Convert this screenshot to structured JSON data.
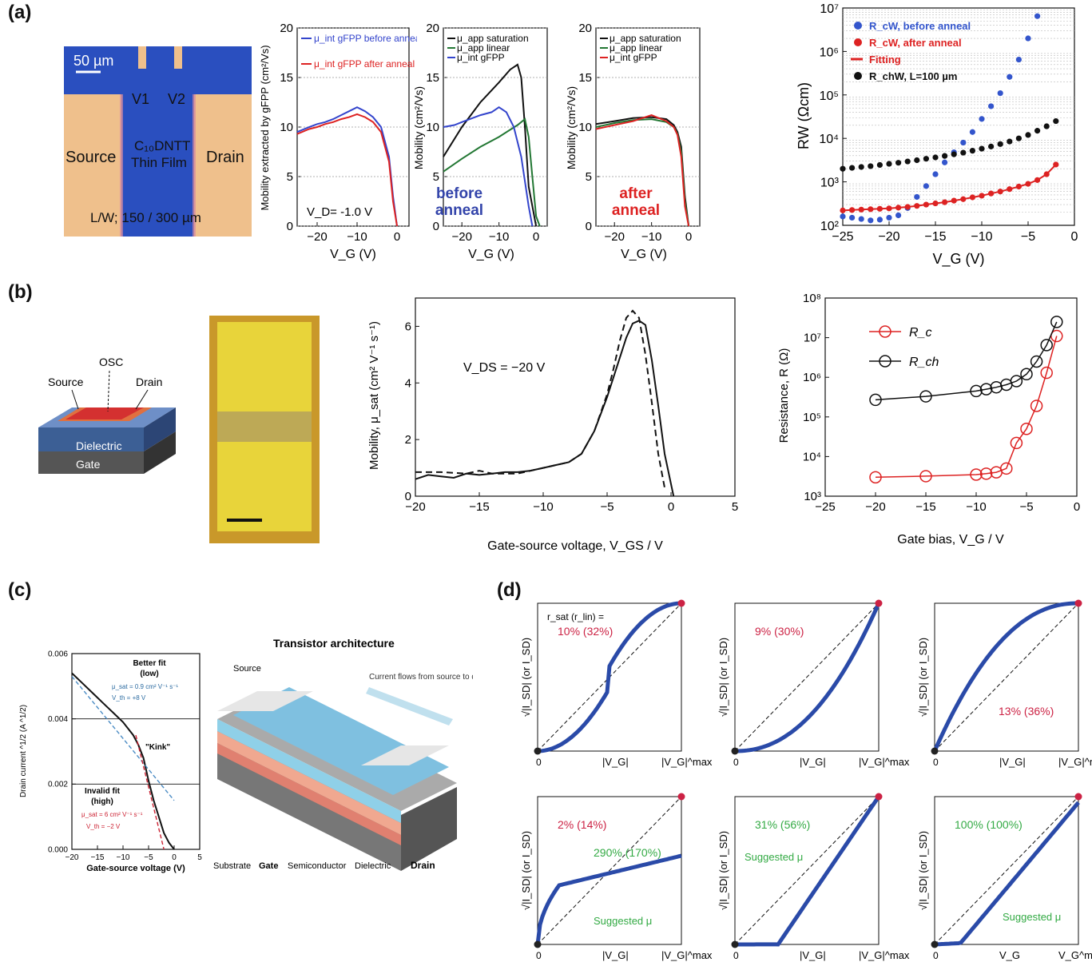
{
  "panel_labels": {
    "a": "(a)",
    "b": "(b)",
    "c": "(c)",
    "d": "(d)"
  },
  "a_micrograph": {
    "scale": "50 µm",
    "v1": "V1",
    "v2": "V2",
    "source": "Source",
    "drain": "Drain",
    "film_line1": "C₁₀DNTT",
    "film_line2": "Thin Film",
    "lw": "L/W; 150 / 300 µm",
    "colors": {
      "film": "#2a4fbf",
      "electrode": "#efc08c"
    }
  },
  "b_device": {
    "osc": "OSC",
    "source": "Source",
    "drain": "Drain",
    "dielectric": "Dielectric",
    "gate": "Gate"
  },
  "c_arch": {
    "title": "Transistor architecture",
    "source": "Source",
    "flow": "Current flows from source to drain",
    "substrate": "Substrate",
    "gate": "Gate",
    "semiconductor": "Semiconductor",
    "dielectric": "Dielectric",
    "drain": "Drain"
  },
  "chart_data": [
    {
      "id": "a1",
      "type": "line",
      "ylabel": "Mobility extracted by gFPP (cm²/Vs)",
      "xlabel": "V_G (V)",
      "xlim": [
        -25,
        3
      ],
      "ylim": [
        0,
        20
      ],
      "xticks": [
        -20,
        -10,
        0
      ],
      "yticks": [
        0,
        5,
        10,
        15,
        20
      ],
      "annotation": "V_D= -1.0 V",
      "series": [
        {
          "name": "μ_int gFPP before anneal",
          "color": "#3344cc",
          "x": [
            -25,
            -22,
            -20,
            -18,
            -16,
            -14,
            -12,
            -10,
            -8,
            -6,
            -4,
            -2,
            -1,
            0
          ],
          "y": [
            9.5,
            10,
            10.3,
            10.5,
            10.8,
            11.2,
            11.6,
            12,
            11.6,
            11,
            10,
            7,
            3,
            0
          ]
        },
        {
          "name": "μ_int gFPP after anneal",
          "color": "#dd2222",
          "x": [
            -25,
            -22,
            -20,
            -18,
            -16,
            -14,
            -12,
            -10,
            -8,
            -6,
            -4,
            -2,
            -1,
            0
          ],
          "y": [
            9.3,
            9.8,
            10,
            10.3,
            10.5,
            10.8,
            11,
            11.3,
            11,
            10.5,
            9.5,
            6.5,
            2.5,
            0
          ]
        }
      ]
    },
    {
      "id": "a2",
      "type": "line",
      "ylabel": "Mobility (cm²/Vs)",
      "xlabel": "V_G (V)",
      "xlim": [
        -25,
        3
      ],
      "ylim": [
        0,
        20
      ],
      "xticks": [
        -20,
        -10,
        0
      ],
      "yticks": [
        0,
        5,
        10,
        15,
        20
      ],
      "annotation": "before anneal",
      "series": [
        {
          "name": "μ_app saturation",
          "color": "#111111",
          "x": [
            -25,
            -20,
            -15,
            -10,
            -7,
            -5,
            -4,
            -3,
            -2,
            0
          ],
          "y": [
            7,
            10,
            12.5,
            14.5,
            15.8,
            16.3,
            15,
            10,
            4,
            0
          ]
        },
        {
          "name": "μ_app linear",
          "color": "#227733",
          "x": [
            -25,
            -20,
            -15,
            -10,
            -5,
            -3,
            -2,
            -1,
            0,
            1
          ],
          "y": [
            5.5,
            6.8,
            8,
            9,
            10.2,
            10.8,
            9,
            5,
            1,
            0
          ]
        },
        {
          "name": "μ_int gFPP",
          "color": "#3344cc",
          "x": [
            -25,
            -22,
            -20,
            -15,
            -12,
            -10,
            -8,
            -6,
            -4,
            -2,
            -1
          ],
          "y": [
            10,
            10.2,
            10.5,
            11.2,
            11.5,
            12,
            11.5,
            10,
            7,
            2,
            0
          ]
        }
      ]
    },
    {
      "id": "a3",
      "type": "line",
      "ylabel": "Mobility (cm²/Vs)",
      "xlabel": "V_G (V)",
      "xlim": [
        -25,
        3
      ],
      "ylim": [
        0,
        20
      ],
      "xticks": [
        -20,
        -10,
        0
      ],
      "yticks": [
        0,
        5,
        10,
        15,
        20
      ],
      "annotation": "after anneal",
      "series": [
        {
          "name": "μ_app saturation",
          "color": "#111111",
          "x": [
            -25,
            -20,
            -15,
            -10,
            -6,
            -4,
            -3,
            -2,
            -1,
            0
          ],
          "y": [
            10.3,
            10.6,
            10.9,
            11,
            10.8,
            10.2,
            9.5,
            8,
            3,
            0
          ]
        },
        {
          "name": "μ_app linear",
          "color": "#227733",
          "x": [
            -25,
            -20,
            -15,
            -10,
            -6,
            -4,
            -3,
            -2,
            -1,
            0
          ],
          "y": [
            10,
            10.4,
            10.7,
            10.8,
            10.5,
            10,
            9.3,
            7.5,
            2.5,
            0
          ]
        },
        {
          "name": "μ_int gFPP",
          "color": "#dd2222",
          "x": [
            -25,
            -20,
            -15,
            -10,
            -6,
            -4,
            -3,
            -2,
            -1,
            0
          ],
          "y": [
            9.8,
            10.2,
            10.6,
            11.2,
            10.6,
            10,
            9.2,
            7,
            2,
            0
          ]
        }
      ]
    },
    {
      "id": "a4",
      "type": "scatter",
      "yscale": "log",
      "ylabel": "RW (Ωcm)",
      "xlabel": "V_G (V)",
      "xlim": [
        -25,
        0
      ],
      "ylim": [
        100,
        10000000
      ],
      "xticks": [
        -25,
        -20,
        -15,
        -10,
        -5,
        0
      ],
      "series": [
        {
          "name": "R_cW, before anneal",
          "color": "#3355cc",
          "x": [
            -25,
            -24,
            -23,
            -22,
            -21,
            -20,
            -19,
            -18,
            -17,
            -16,
            -15,
            -14,
            -13,
            -12,
            -11,
            -10,
            -9,
            -8,
            -7,
            -6,
            -5,
            -4
          ],
          "y": [
            160,
            150,
            140,
            130,
            135,
            150,
            170,
            250,
            450,
            800,
            1500,
            2800,
            4800,
            8000,
            14000,
            28000,
            55000,
            110000,
            260000,
            650000,
            2000000,
            6500000
          ]
        },
        {
          "name": "R_cW, after anneal",
          "color": "#dd2222",
          "x": [
            -25,
            -24,
            -23,
            -22,
            -21,
            -20,
            -19,
            -18,
            -17,
            -16,
            -15,
            -14,
            -13,
            -12,
            -11,
            -10,
            -9,
            -8,
            -7,
            -6,
            -5,
            -4,
            -3,
            -2
          ],
          "y": [
            220,
            225,
            230,
            235,
            240,
            245,
            255,
            265,
            280,
            300,
            320,
            340,
            370,
            400,
            440,
            480,
            540,
            600,
            680,
            780,
            900,
            1100,
            1500,
            2500
          ]
        },
        {
          "name": "Fitting",
          "color": "#dd2222"
        },
        {
          "name": "R_chW, L=100 µm",
          "color": "#111111",
          "x": [
            -25,
            -24,
            -23,
            -22,
            -21,
            -20,
            -19,
            -18,
            -17,
            -16,
            -15,
            -14,
            -13,
            -12,
            -11,
            -10,
            -9,
            -8,
            -7,
            -6,
            -5,
            -4,
            -3,
            -2
          ],
          "y": [
            2000,
            2100,
            2200,
            2300,
            2450,
            2600,
            2750,
            2950,
            3150,
            3400,
            3650,
            3950,
            4300,
            4700,
            5200,
            5800,
            6500,
            7400,
            8500,
            10000,
            12000,
            15000,
            19000,
            25000
          ]
        }
      ]
    },
    {
      "id": "b1",
      "type": "line",
      "ylabel": "Mobility, μ_sat (cm² V⁻¹ s⁻¹)",
      "xlabel": "Gate-source voltage, V_GS / V",
      "xlim": [
        -20,
        5
      ],
      "ylim": [
        0,
        7
      ],
      "xticks": [
        -20,
        -15,
        -10,
        -5,
        0,
        5
      ],
      "yticks": [
        0,
        2,
        4,
        6
      ],
      "annotation": "V_DS = −20 V",
      "series": [
        {
          "style": "solid",
          "x": [
            -20,
            -19,
            -18,
            -17,
            -16,
            -15,
            -14,
            -13,
            -12,
            -11,
            -10,
            -9,
            -8,
            -7,
            -6,
            -5,
            -4.5,
            -4,
            -3.5,
            -3,
            -2.5,
            -2,
            -1.5,
            -1,
            -0.5,
            0.2
          ],
          "y": [
            0.6,
            0.75,
            0.7,
            0.65,
            0.8,
            0.75,
            0.8,
            0.85,
            0.85,
            0.9,
            1.0,
            1.1,
            1.2,
            1.5,
            2.3,
            3.5,
            4.2,
            4.9,
            5.6,
            6.1,
            6.2,
            6.05,
            4.8,
            3.2,
            1.5,
            0
          ]
        },
        {
          "style": "dashed",
          "x": [
            -20,
            -18,
            -16,
            -15,
            -14,
            -12,
            -10,
            -8,
            -7,
            -6,
            -5,
            -4.5,
            -4,
            -3.5,
            -3,
            -2.5,
            -2,
            -1.5,
            -1,
            -0.5
          ],
          "y": [
            0.85,
            0.85,
            0.8,
            0.9,
            0.8,
            0.8,
            1.0,
            1.2,
            1.5,
            2.3,
            3.6,
            4.5,
            5.5,
            6.3,
            6.55,
            6.3,
            5.0,
            3.3,
            1.5,
            0.3
          ]
        }
      ]
    },
    {
      "id": "b2",
      "type": "line",
      "yscale": "log",
      "ylabel": "Resistance, R (Ω)",
      "xlabel": "Gate bias, V_G / V",
      "xlim": [
        -25,
        0
      ],
      "ylim": [
        1000,
        100000000
      ],
      "xticks": [
        -25,
        -20,
        -15,
        -10,
        -5,
        0
      ],
      "series": [
        {
          "name": "R_c",
          "color": "#dd2222",
          "x": [
            -20,
            -15,
            -10,
            -9,
            -8,
            -7,
            -6,
            -5,
            -4,
            -3,
            -2
          ],
          "y": [
            3000,
            3200,
            3500,
            3700,
            4000,
            5000,
            22000,
            50000,
            190000,
            1300000,
            11000000
          ]
        },
        {
          "name": "R_ch",
          "color": "#111111",
          "x": [
            -20,
            -15,
            -10,
            -9,
            -8,
            -7,
            -6,
            -5,
            -4,
            -3,
            -2
          ],
          "y": [
            270000,
            330000,
            450000,
            500000,
            560000,
            650000,
            800000,
            1200000,
            2500000,
            6500000,
            25000000
          ]
        }
      ]
    },
    {
      "id": "c1",
      "type": "line",
      "ylabel": "Drain current ^1/2 (A ^1/2)",
      "xlabel": "Gate-source voltage (V)",
      "xlim": [
        -20,
        5
      ],
      "ylim": [
        0,
        0.006
      ],
      "xticks": [
        -20,
        -15,
        -10,
        -5,
        0,
        5
      ],
      "yticks": [
        0,
        0.002,
        0.004,
        0.006
      ],
      "ytick_labels": [
        "0.000",
        "0.002",
        "0.004",
        "0.006"
      ],
      "annotations": {
        "better_fit": "Better fit",
        "low": "(low)",
        "mu_low": "μ_sat = 0.9 cm² V⁻¹ s⁻¹",
        "vth_low": "V_th = +8 V",
        "kink": "\"Kink\"",
        "invalid_fit": "Invalid fit",
        "high": "(high)",
        "mu_high": "μ_sat = 6 cm² V⁻¹ s⁻¹",
        "vth_high": "V_th = −2 V"
      },
      "series": [
        {
          "name": "data",
          "color": "#111111",
          "x": [
            -20,
            -18,
            -16,
            -14,
            -12,
            -10,
            -8,
            -7,
            -6,
            -5,
            -4,
            -3,
            -2,
            -1,
            0
          ],
          "y": [
            0.0054,
            0.0051,
            0.0048,
            0.0045,
            0.0042,
            0.0039,
            0.0035,
            0.0032,
            0.0028,
            0.0021,
            0.0015,
            0.001,
            0.0005,
            0.0002,
            0
          ]
        },
        {
          "name": "low fit",
          "color": "#4a8bc4",
          "dash": true,
          "x": [
            -20,
            0
          ],
          "y": [
            0.0053,
            0.0015
          ]
        },
        {
          "name": "high fit",
          "color": "#cc2233",
          "dash": true,
          "x": [
            -7.5,
            -2
          ],
          "y": [
            0.0035,
            0
          ]
        }
      ]
    },
    {
      "id": "d",
      "type": "line",
      "ylabel": "√|I_SD|   (or I_SD)",
      "xlabel": "|V_G|",
      "xmax_label": "|V_G|^max",
      "label_header": "r_sat (r_lin) =",
      "subplots": [
        {
          "curve": "s",
          "label": "10% (32%)",
          "label_color": "#cc2244"
        },
        {
          "curve": "convex",
          "label": "9% (30%)",
          "label_color": "#cc2244"
        },
        {
          "curve": "concave",
          "label": "13% (36%)",
          "label_color": "#cc2244"
        },
        {
          "curve": "kink",
          "label": "2% (14%)",
          "label_color": "#cc2244",
          "label2": "290% (170%)",
          "label2_color": "#33aa44",
          "suggested": "Suggested μ"
        },
        {
          "curve": "threshold",
          "label": "31% (56%)",
          "label_color": "#33aa44",
          "suggested": "Suggested μ"
        },
        {
          "curve": "ideal",
          "label": "100% (100%)",
          "label_color": "#33aa44",
          "suggested": "Suggested μ",
          "xlabel": "V_G",
          "xmax_label": "V_G^max"
        }
      ]
    }
  ]
}
